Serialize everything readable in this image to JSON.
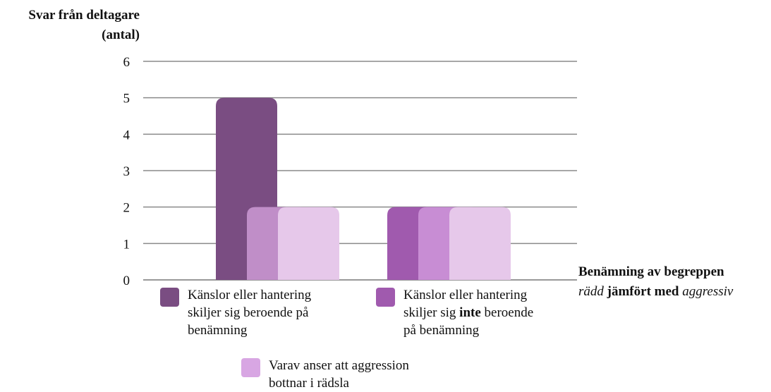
{
  "y_axis_label": {
    "line1": "Svar från deltagare",
    "line2": "(antal)"
  },
  "x_axis_label": {
    "line1": "Benämning av begreppen",
    "line2_italic_a": "rädd",
    "line2_mid": " jämfört med ",
    "line2_italic_b": "aggressiv"
  },
  "legend": [
    {
      "lines": [
        "Känslor eller hantering",
        "skiljer sig beroende på",
        "benämning"
      ],
      "color": "#7a4d82"
    },
    {
      "lines_pre": "Känslor eller hantering",
      "line2_pre": "skiljer sig ",
      "line2_bold": "inte",
      "line2_post": " beroende",
      "line3": "på benämning",
      "color": "#a05aae"
    },
    {
      "lines": [
        "Varav anser att aggression",
        "bottnar i rädsla"
      ],
      "color": "#d8a6e3"
    }
  ],
  "chart_data": {
    "type": "bar",
    "ylim": [
      0,
      6
    ],
    "yticks": [
      "0",
      "1",
      "2",
      "3",
      "4",
      "5",
      "6"
    ],
    "grid": true,
    "groups": [
      {
        "bars": [
          {
            "value": 5,
            "color": "#7a4d82"
          },
          {
            "value": 2,
            "color": "#c08ec8"
          },
          {
            "value": 2,
            "color": "#e6c8ea"
          }
        ]
      },
      {
        "bars": [
          {
            "value": 2,
            "color": "#a05aae"
          },
          {
            "value": 2,
            "color": "#c88dd4"
          },
          {
            "value": 2,
            "color": "#e6c8ea"
          }
        ]
      }
    ]
  }
}
